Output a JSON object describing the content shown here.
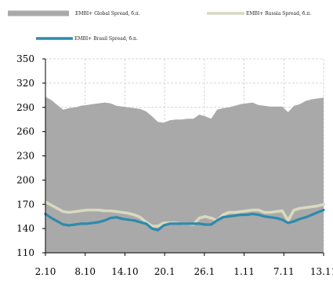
{
  "chart_data": {
    "type": "line",
    "title": "",
    "xlabel": "",
    "ylabel": "",
    "ylim": [
      110,
      350
    ],
    "y_ticks": [
      110,
      140,
      170,
      200,
      230,
      260,
      290,
      320,
      350
    ],
    "x_tick_labels": [
      "2.10",
      "8.10",
      "14.10",
      "20.1",
      "26.1",
      "1.11",
      "7.11",
      "13.11"
    ],
    "x_count": 48,
    "grid": true,
    "legend_placement": "top",
    "series": [
      {
        "name": "EMBI+ Global Spread, б.п.",
        "style": "area",
        "color": "#a9a9a9",
        "values": [
          303,
          299,
          293,
          287,
          289,
          290,
          292,
          293,
          294,
          295,
          296,
          295,
          292,
          291,
          290,
          289,
          288,
          285,
          279,
          272,
          271,
          274,
          275,
          275,
          276,
          276,
          281,
          279,
          276,
          287,
          289,
          290,
          292,
          294,
          295,
          296,
          293,
          292,
          291,
          291,
          291,
          284,
          292,
          294,
          298,
          300,
          301,
          302
        ]
      },
      {
        "name": "EMBI+ Russia Spread, б.п.",
        "style": "line",
        "color": "#d9d9bf",
        "values": [
          173,
          169,
          165,
          161,
          160,
          161,
          162,
          163,
          163,
          163,
          162,
          162,
          161,
          160,
          159,
          157,
          154,
          148,
          143,
          143,
          147,
          147,
          147,
          146,
          146,
          145,
          153,
          155,
          153,
          150,
          157,
          160,
          160,
          161,
          162,
          163,
          163,
          160,
          160,
          161,
          162,
          150,
          163,
          165,
          166,
          167,
          168,
          170
        ]
      },
      {
        "name": "EMBI+ Brasil Spread, б.п.",
        "style": "line",
        "color": "#2e8aab",
        "values": [
          158,
          153,
          149,
          145,
          144,
          145,
          146,
          146,
          147,
          148,
          150,
          153,
          154,
          152,
          151,
          150,
          148,
          146,
          140,
          138,
          144,
          146,
          146,
          146,
          146,
          146,
          146,
          145,
          145,
          150,
          154,
          155,
          156,
          157,
          157,
          158,
          157,
          155,
          154,
          153,
          151,
          147,
          149,
          152,
          154,
          157,
          160,
          163
        ]
      }
    ]
  }
}
